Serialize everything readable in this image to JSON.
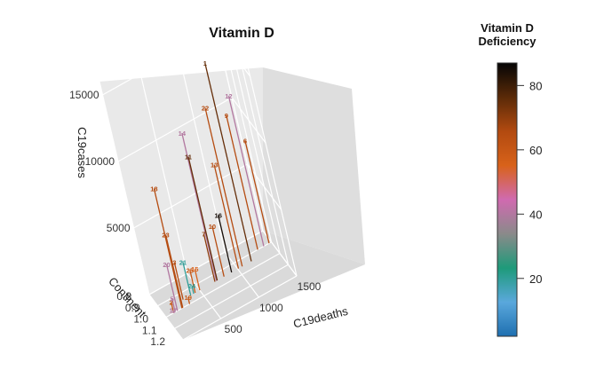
{
  "chart_data": {
    "type": "scatter3d",
    "title": "Vitamin D",
    "xlabel": "C19deaths",
    "ylabel": "Continent",
    "zlabel": "C19cases",
    "xlim": [
      0,
      1500
    ],
    "ylim": [
      0.8,
      1.2
    ],
    "zlim": [
      0,
      16000
    ],
    "x_ticks": [
      "500",
      "1000",
      "1500"
    ],
    "y_ticks": [
      "0.8",
      "0.9",
      "1.0",
      "1.1",
      "1.2"
    ],
    "z_ticks": [
      "5000",
      "10000",
      "15000"
    ],
    "legend": {
      "title_line1": "Vitamin D",
      "title_line2": "Deficiency",
      "ticks": [
        "20",
        "40",
        "60",
        "80"
      ],
      "range": [
        2,
        87
      ],
      "stops": [
        "#1e6fb0",
        "#5aa8dc",
        "#1e9a7a",
        "#8a8a8a",
        "#d06ab0",
        "#d8621a",
        "#b24a10",
        "#5a2a08",
        "#050505"
      ]
    },
    "points": [
      {
        "label": "1",
        "deaths": 1180,
        "cases": 14900,
        "continent": 0.95,
        "value": 75
      },
      {
        "label": "2",
        "deaths": 100,
        "cases": 800,
        "continent": 1.0,
        "value": 60
      },
      {
        "label": "3",
        "deaths": 280,
        "cases": 2800,
        "continent": 0.95,
        "value": 65
      },
      {
        "label": "5",
        "deaths": 120,
        "cases": 1000,
        "continent": 1.0,
        "value": 40
      },
      {
        "label": "6",
        "deaths": 1470,
        "cases": 7700,
        "continent": 0.9,
        "value": 65
      },
      {
        "label": "7",
        "deaths": 700,
        "cases": 3600,
        "continent": 0.95,
        "value": 70
      },
      {
        "label": "9",
        "deaths": 1320,
        "cases": 10100,
        "continent": 0.9,
        "value": 65
      },
      {
        "label": "10",
        "deaths": 820,
        "cases": 3800,
        "continent": 0.95,
        "value": 65
      },
      {
        "label": "11",
        "deaths": 730,
        "cases": 9300,
        "continent": 0.95,
        "value": 75
      },
      {
        "label": "12",
        "deaths": 1400,
        "cases": 11300,
        "continent": 0.9,
        "value": 40
      },
      {
        "label": "13",
        "deaths": 1010,
        "cases": 7800,
        "continent": 0.95,
        "value": 65
      },
      {
        "label": "14",
        "deaths": 720,
        "cases": 11100,
        "continent": 0.95,
        "value": 40
      },
      {
        "label": "15",
        "deaths": 500,
        "cases": 1600,
        "continent": 0.95,
        "value": 55
      },
      {
        "label": "16",
        "deaths": 920,
        "cases": 4300,
        "continent": 0.95,
        "value": 85
      },
      {
        "label": "17",
        "deaths": 100,
        "cases": 200,
        "continent": 1.0,
        "value": 40
      },
      {
        "label": "18",
        "deaths": 210,
        "cases": 9000,
        "continent": 1.0,
        "value": 65
      },
      {
        "label": "19",
        "deaths": 310,
        "cases": 500,
        "continent": 1.0,
        "value": 60
      },
      {
        "label": "20",
        "deaths": 150,
        "cases": 3500,
        "continent": 1.0,
        "value": 40
      },
      {
        "label": "21",
        "deaths": 380,
        "cases": 2500,
        "continent": 0.95,
        "value": 20
      },
      {
        "label": "22",
        "deaths": 1060,
        "cases": 11900,
        "continent": 0.95,
        "value": 65
      },
      {
        "label": "23",
        "deaths": 220,
        "cases": 5500,
        "continent": 1.0,
        "value": 65
      },
      {
        "label": "24",
        "deaths": 420,
        "cases": 600,
        "continent": 0.95,
        "value": 20
      },
      {
        "label": "25",
        "deaths": 440,
        "cases": 1700,
        "continent": 0.95,
        "value": 60
      }
    ]
  }
}
